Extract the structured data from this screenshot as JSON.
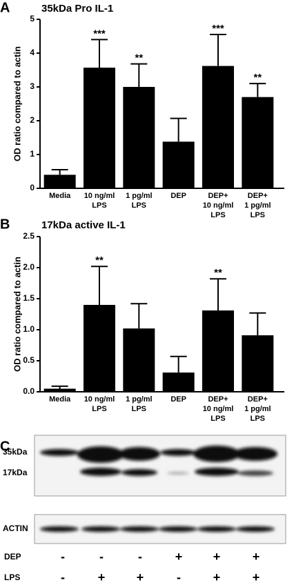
{
  "chart_data": [
    {
      "type": "bar",
      "panel": "A",
      "title": "35kDa Pro IL-1",
      "y_label": "OD ratio compared to actin",
      "categories": [
        [
          "Media"
        ],
        [
          "10 ng/ml",
          "LPS"
        ],
        [
          "1 pg/ml",
          "LPS"
        ],
        [
          "DEP"
        ],
        [
          "DEP+",
          "10 ng/ml",
          "LPS"
        ],
        [
          "DEP+",
          "1 pg/ml",
          "LPS"
        ]
      ],
      "values": [
        0.4,
        3.57,
        3.0,
        1.38,
        3.62,
        2.7
      ],
      "errors": [
        0.15,
        0.83,
        0.68,
        0.69,
        0.93,
        0.4
      ],
      "significance": [
        null,
        "***",
        "**",
        null,
        "***",
        "**"
      ],
      "color": "#000000",
      "ylim": [
        0,
        5
      ],
      "yticks": [
        0,
        1,
        2,
        3,
        4,
        5
      ]
    },
    {
      "type": "bar",
      "panel": "B",
      "title": "17kDa active IL-1",
      "y_label": "OD ratio compared to actin",
      "categories": [
        [
          "Media"
        ],
        [
          "10 ng/ml",
          "LPS"
        ],
        [
          "1 pg/ml",
          "LPS"
        ],
        [
          "DEP"
        ],
        [
          "DEP+",
          "10 ng/ml",
          "LPS"
        ],
        [
          "DEP+",
          "1 pg/ml",
          "LPS"
        ]
      ],
      "values": [
        0.05,
        1.4,
        1.02,
        0.31,
        1.31,
        0.91
      ],
      "errors": [
        0.04,
        0.62,
        0.4,
        0.26,
        0.51,
        0.36
      ],
      "significance": [
        null,
        "**",
        null,
        null,
        "**",
        null
      ],
      "color": "#000000",
      "ylim": [
        0,
        2.5
      ],
      "yticks": [
        {
          "value": 0,
          "label": "0.0"
        },
        0.5,
        {
          "value": 1,
          "label": "1.0"
        },
        1.5,
        {
          "value": 2,
          "label": "2.0"
        },
        2.5
      ]
    }
  ],
  "blot": {
    "panel": "C",
    "bands": [
      "35kDa",
      "17kDa"
    ],
    "control": "ACTIN",
    "treatments": [
      {
        "label": "DEP",
        "signs": [
          "-",
          "-",
          "-",
          "+",
          "+",
          "+"
        ]
      },
      {
        "label": "LPS",
        "signs": [
          "-",
          "+",
          "+",
          "-",
          "+",
          "+"
        ]
      }
    ]
  }
}
